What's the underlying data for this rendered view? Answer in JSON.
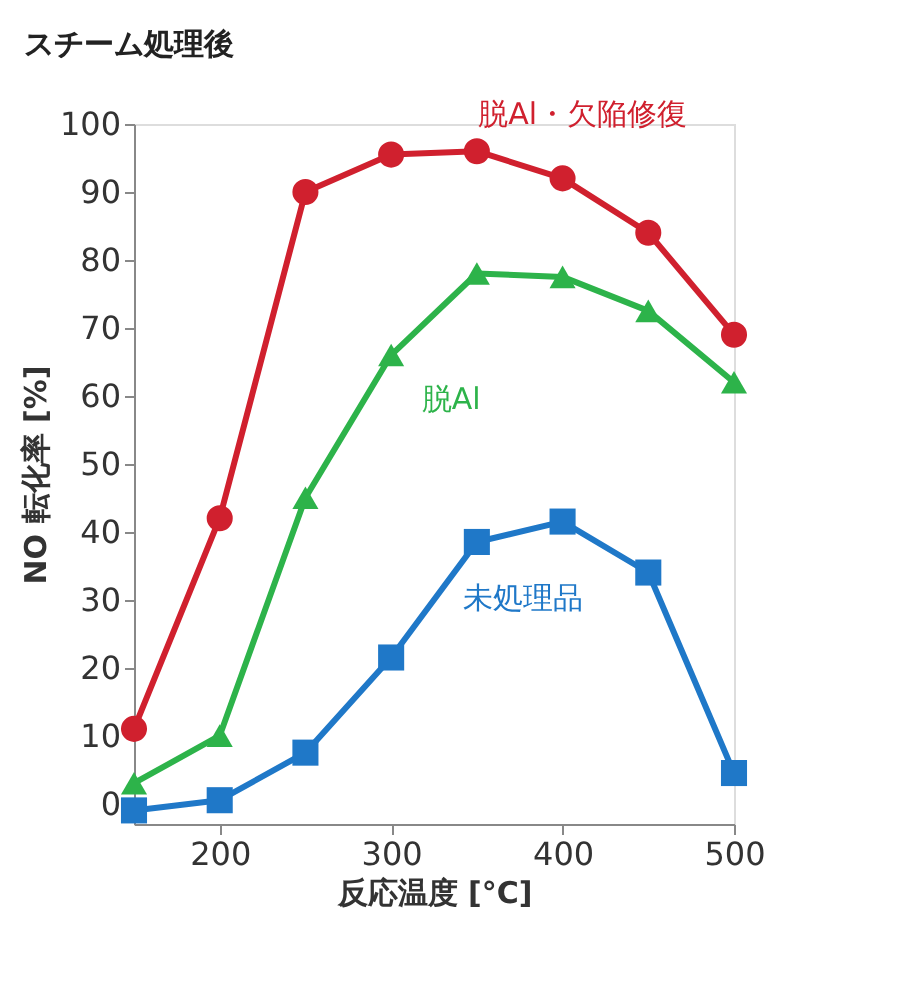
{
  "chart_data": {
    "type": "line",
    "title": "スチーム処理後",
    "xlabel": "反応温度 [°C]",
    "ylabel": "NO 転化率 [%]",
    "x": [
      150,
      200,
      250,
      300,
      350,
      400,
      450,
      500
    ],
    "series": [
      {
        "name": "脱Al・欠陥修復",
        "color": "#d0202e",
        "marker": "circle",
        "values": [
          11,
          42,
          90,
          95.5,
          96,
          92,
          84,
          69
        ]
      },
      {
        "name": "脱Al",
        "color": "#2db34a",
        "marker": "triangle",
        "values": [
          3,
          10,
          45,
          66,
          78,
          77.5,
          72.5,
          62
        ]
      },
      {
        "name": "未処理品",
        "color": "#1f78c8",
        "marker": "square",
        "values": [
          -1,
          0.5,
          7.5,
          21.5,
          38.5,
          41.5,
          34,
          4.5
        ]
      }
    ],
    "xlim": [
      150,
      500
    ],
    "xticks": [
      200,
      300,
      400,
      500
    ],
    "ylim": [
      -3,
      100
    ],
    "yticks": [
      0,
      10,
      20,
      30,
      40,
      50,
      60,
      70,
      80,
      90,
      100
    ],
    "grid": false,
    "line_style": "solid"
  }
}
